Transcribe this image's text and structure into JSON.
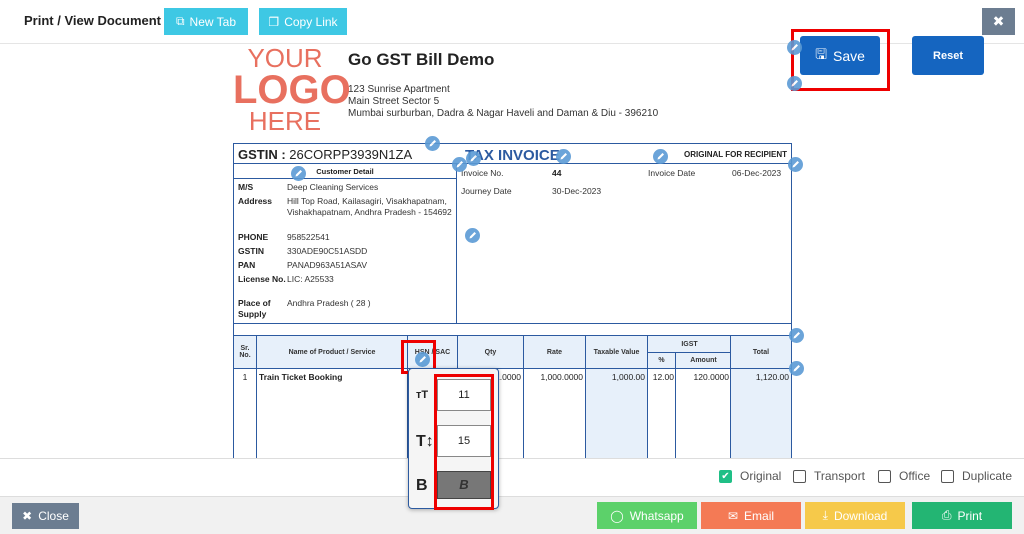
{
  "header": {
    "title": "Print / View Document",
    "new_tab": "New Tab",
    "copy_link": "Copy Link",
    "close_icon": "times-icon"
  },
  "actions": {
    "save": "Save",
    "reset": "Reset"
  },
  "logo": {
    "line1": "YOUR",
    "line2": "LOGO",
    "line3": "HERE"
  },
  "company": {
    "name": "Go GST Bill Demo",
    "address1": "123 Sunrise Apartment",
    "address2": "Main Street Sector 5",
    "address3": "Mumbai surburban, Dadra & Nagar Haveli and Daman & Diu - 396210"
  },
  "invoice": {
    "gstin_label": "GSTIN :",
    "gstin": "26CORPP3939N1ZA",
    "title": "TAX INVOICE",
    "copy_label": "ORIGINAL FOR RECIPIENT",
    "customer_detail": "Customer Detail",
    "customer": [
      {
        "label": "M/S",
        "value": "Deep Cleaning Services"
      },
      {
        "label": "Address",
        "value": "Hill Top Road, Kailasagiri, Visakhapatnam, Vishakhapatnam, Andhra Pradesh - 154692"
      },
      {
        "label": "PHONE",
        "value": "958522541"
      },
      {
        "label": "GSTIN",
        "value": "330ADE90C51ASDD"
      },
      {
        "label": "PAN",
        "value": "PANAD963A51ASAV"
      },
      {
        "label": "License No.",
        "value": "LIC: A25533"
      },
      {
        "label": "Place of Supply",
        "value": "Andhra Pradesh ( 28 )"
      }
    ],
    "invoice_no_label": "Invoice No.",
    "invoice_no": "44",
    "invoice_date_label": "Invoice Date",
    "invoice_date": "06-Dec-2023",
    "journey_date_label": "Journey Date",
    "journey_date": "30-Dec-2023"
  },
  "table": {
    "headers": {
      "sr": "Sr. No.",
      "name": "Name of Product / Service",
      "hsn": "HSN / SAC",
      "qty": "Qty",
      "rate": "Rate",
      "taxable": "Taxable Value",
      "igst": "IGST",
      "pct": "%",
      "amount": "Amount",
      "total": "Total"
    },
    "rows": [
      {
        "sr": "1",
        "name": "Train Ticket Booking",
        "qty": "1.0000",
        "rate": "1,000.0000",
        "taxable": "1,000.00",
        "pct": "12.00",
        "amount": "120.0000",
        "total": "1,120.00"
      }
    ]
  },
  "popup": {
    "font_size": "11",
    "line_height": "15",
    "bold_label": "B"
  },
  "copies": [
    {
      "label": "Original",
      "checked": true
    },
    {
      "label": "Transport",
      "checked": false
    },
    {
      "label": "Office",
      "checked": false
    },
    {
      "label": "Duplicate",
      "checked": false
    }
  ],
  "footer": {
    "close": "Close",
    "whatsapp": "Whatsapp",
    "email": "Email",
    "download": "Download",
    "print": "Print"
  },
  "colors": {
    "new_tab": "#3ec8e4",
    "save": "#1565c0",
    "whatsapp": "#5cd16a",
    "email": "#f47a55",
    "download": "#f6c94a",
    "print": "#23b573",
    "close": "#6c7d91"
  }
}
